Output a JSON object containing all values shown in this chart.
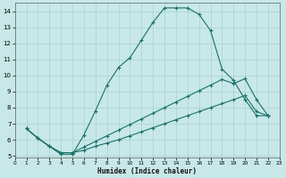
{
  "xlabel": "Humidex (Indice chaleur)",
  "bg_color": "#c8e8e8",
  "grid_color": "#a8d0d0",
  "line_color": "#1a7068",
  "curve1_x": [
    1,
    2,
    3,
    4,
    5,
    6,
    7,
    8,
    9,
    10,
    11,
    12,
    13,
    14,
    15,
    16,
    17,
    18,
    19,
    20,
    21,
    22
  ],
  "curve1_y": [
    6.7,
    6.1,
    5.6,
    5.1,
    5.1,
    6.3,
    7.8,
    9.4,
    10.5,
    11.1,
    12.2,
    13.3,
    14.2,
    14.2,
    14.2,
    13.8,
    12.8,
    10.4,
    9.7,
    8.5,
    7.5,
    7.5
  ],
  "curve2_x": [
    1,
    2,
    3,
    4,
    5,
    6,
    7,
    8,
    9,
    10,
    11,
    12,
    13,
    14,
    15,
    16,
    17,
    18,
    19,
    20,
    21,
    22
  ],
  "curve2_y": [
    6.7,
    6.1,
    5.6,
    5.2,
    5.2,
    5.55,
    5.9,
    6.25,
    6.6,
    6.95,
    7.3,
    7.65,
    8.0,
    8.35,
    8.7,
    9.05,
    9.4,
    9.75,
    9.5,
    9.8,
    8.5,
    7.5
  ],
  "curve3_x": [
    1,
    2,
    3,
    4,
    5,
    6,
    7,
    8,
    9,
    10,
    11,
    12,
    13,
    14,
    15,
    16,
    17,
    18,
    19,
    20,
    21,
    22
  ],
  "curve3_y": [
    6.7,
    6.1,
    5.6,
    5.2,
    5.2,
    5.35,
    5.6,
    5.8,
    6.0,
    6.25,
    6.5,
    6.75,
    7.0,
    7.25,
    7.5,
    7.75,
    8.0,
    8.25,
    8.5,
    8.75,
    7.75,
    7.5
  ],
  "xlim": [
    0,
    23
  ],
  "ylim": [
    4.9,
    14.5
  ],
  "yticks": [
    5,
    6,
    7,
    8,
    9,
    10,
    11,
    12,
    13,
    14
  ],
  "xticks": [
    0,
    1,
    2,
    3,
    4,
    5,
    6,
    7,
    8,
    9,
    10,
    11,
    12,
    13,
    14,
    15,
    16,
    17,
    18,
    19,
    20,
    21,
    22,
    23
  ]
}
